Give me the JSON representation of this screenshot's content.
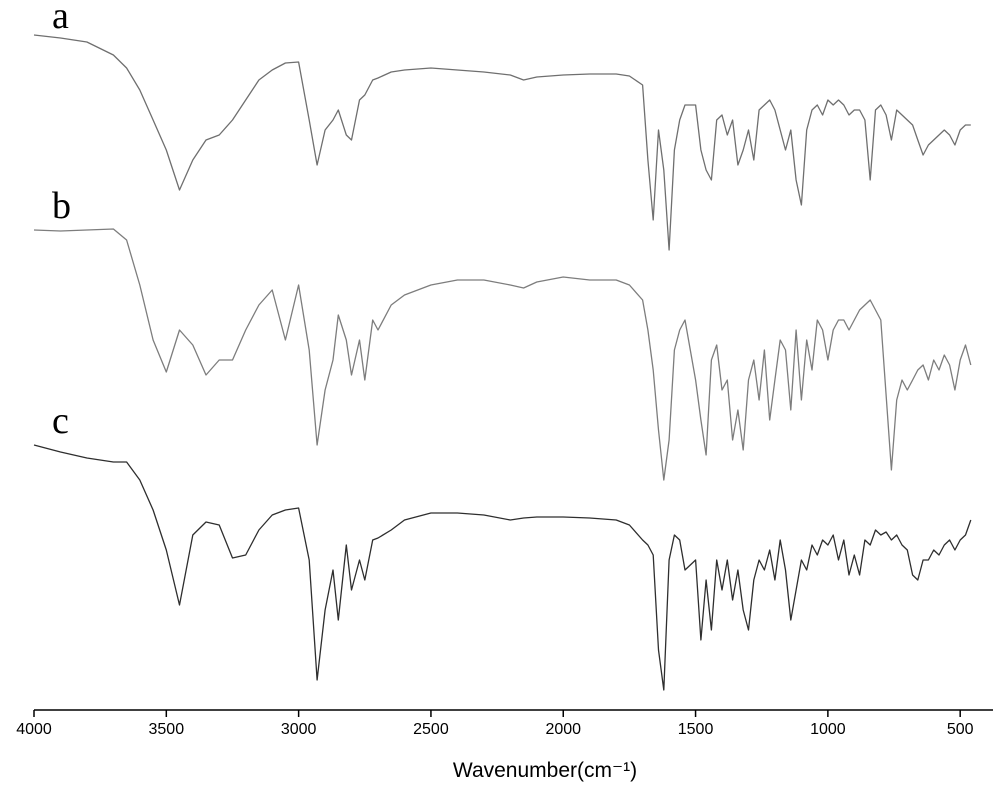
{
  "chart_data": {
    "type": "line",
    "x_label": "Wavenumber(cm⁻¹)",
    "xlim": [
      4000,
      376
    ],
    "ylim": [
      0,
      710
    ],
    "xticks": [
      4000,
      3500,
      3000,
      2500,
      2000,
      1500,
      1000,
      500
    ],
    "x": [
      4000,
      3900,
      3800,
      3700,
      3650,
      3600,
      3550,
      3500,
      3450,
      3400,
      3350,
      3300,
      3250,
      3200,
      3150,
      3100,
      3050,
      3000,
      2960,
      2930,
      2900,
      2870,
      2850,
      2820,
      2800,
      2770,
      2750,
      2720,
      2700,
      2650,
      2600,
      2500,
      2400,
      2300,
      2200,
      2150,
      2100,
      2000,
      1900,
      1800,
      1750,
      1700,
      1680,
      1660,
      1640,
      1620,
      1600,
      1580,
      1560,
      1540,
      1500,
      1480,
      1460,
      1440,
      1420,
      1400,
      1380,
      1360,
      1340,
      1320,
      1300,
      1280,
      1260,
      1240,
      1220,
      1200,
      1180,
      1160,
      1140,
      1120,
      1100,
      1080,
      1060,
      1040,
      1020,
      1000,
      980,
      960,
      940,
      920,
      900,
      880,
      860,
      840,
      820,
      800,
      780,
      760,
      740,
      720,
      700,
      680,
      660,
      640,
      620,
      600,
      580,
      560,
      540,
      520,
      500,
      480,
      460
    ],
    "series": [
      {
        "name": "a",
        "color": "#6f6f6f",
        "values": [
          675,
          672,
          668,
          655,
          642,
          620,
          590,
          560,
          520,
          550,
          570,
          575,
          590,
          610,
          630,
          640,
          647,
          648,
          590,
          545,
          580,
          590,
          600,
          575,
          570,
          610,
          615,
          630,
          632,
          638,
          640,
          642,
          640,
          638,
          635,
          630,
          633,
          635,
          636,
          636,
          634,
          625,
          550,
          490,
          580,
          540,
          460,
          560,
          590,
          605,
          605,
          560,
          540,
          530,
          590,
          595,
          575,
          590,
          545,
          560,
          580,
          550,
          600,
          605,
          610,
          600,
          580,
          560,
          580,
          530,
          505,
          580,
          600,
          605,
          595,
          610,
          605,
          610,
          605,
          595,
          600,
          600,
          590,
          530,
          600,
          605,
          595,
          570,
          600,
          595,
          590,
          585,
          570,
          555,
          565,
          570,
          575,
          580,
          575,
          565,
          580,
          585,
          585
        ]
      },
      {
        "name": "b",
        "color": "#7d7d7d",
        "values": [
          480,
          479,
          480,
          481,
          470,
          425,
          370,
          338,
          380,
          365,
          335,
          350,
          350,
          380,
          405,
          420,
          370,
          425,
          360,
          265,
          320,
          350,
          395,
          370,
          335,
          370,
          330,
          390,
          380,
          405,
          415,
          425,
          430,
          430,
          425,
          422,
          428,
          433,
          430,
          430,
          425,
          410,
          380,
          340,
          280,
          230,
          270,
          360,
          380,
          390,
          330,
          290,
          255,
          350,
          365,
          320,
          330,
          270,
          300,
          260,
          330,
          350,
          310,
          360,
          290,
          330,
          370,
          360,
          300,
          380,
          310,
          370,
          340,
          390,
          380,
          350,
          380,
          390,
          390,
          380,
          390,
          400,
          405,
          410,
          400,
          390,
          315,
          240,
          310,
          330,
          320,
          330,
          340,
          345,
          330,
          350,
          340,
          355,
          345,
          320,
          350,
          365,
          345
        ]
      },
      {
        "name": "c",
        "color": "#2e2e2e",
        "values": [
          265,
          258,
          252,
          248,
          248,
          230,
          200,
          160,
          105,
          175,
          188,
          185,
          152,
          155,
          180,
          195,
          200,
          202,
          150,
          30,
          100,
          140,
          90,
          165,
          120,
          150,
          130,
          170,
          172,
          180,
          190,
          197,
          197,
          195,
          190,
          192,
          193,
          193,
          192,
          190,
          185,
          170,
          165,
          155,
          60,
          20,
          150,
          175,
          170,
          140,
          150,
          70,
          130,
          80,
          150,
          120,
          150,
          110,
          140,
          100,
          80,
          130,
          150,
          140,
          160,
          130,
          170,
          140,
          90,
          120,
          150,
          140,
          165,
          155,
          170,
          165,
          175,
          150,
          170,
          135,
          155,
          135,
          170,
          165,
          180,
          175,
          178,
          170,
          175,
          165,
          160,
          135,
          130,
          150,
          150,
          160,
          155,
          165,
          170,
          160,
          170,
          175,
          190
        ]
      }
    ]
  }
}
